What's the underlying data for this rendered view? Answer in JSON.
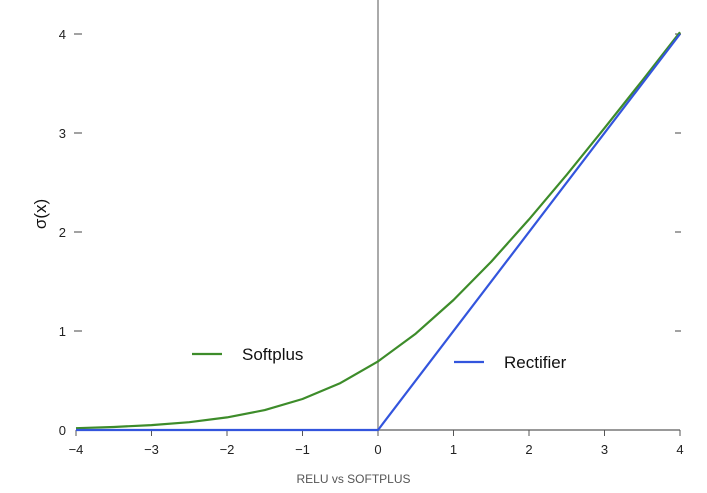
{
  "chart_data": {
    "type": "line",
    "title": "",
    "xlabel": "",
    "ylabel": "σ(x)",
    "xlim": [
      -4,
      4
    ],
    "ylim": [
      0,
      4
    ],
    "x_ticks": [
      -4,
      -3,
      -2,
      -1,
      0,
      1,
      2,
      3,
      4
    ],
    "x_tick_labels": [
      "−4",
      "−3",
      "−2",
      "−1",
      "0",
      "1",
      "2",
      "3",
      "4"
    ],
    "y_ticks": [
      0,
      1,
      2,
      3,
      4
    ],
    "y_tick_labels": [
      "0",
      "1",
      "2",
      "3",
      "4"
    ],
    "grid": false,
    "series": [
      {
        "name": "Softplus",
        "color": "#3d8c2a",
        "x": [
          -4,
          -3.5,
          -3,
          -2.5,
          -2,
          -1.5,
          -1,
          -0.5,
          0,
          0.5,
          1,
          1.5,
          2,
          2.5,
          3,
          3.5,
          4
        ],
        "y": [
          0.018,
          0.03,
          0.049,
          0.079,
          0.127,
          0.201,
          0.313,
          0.474,
          0.693,
          0.974,
          1.313,
          1.701,
          2.127,
          2.579,
          3.049,
          3.53,
          4.018
        ]
      },
      {
        "name": "Rectifier",
        "color": "#3355dd",
        "x": [
          -4,
          0,
          4
        ],
        "y": [
          0,
          0,
          4
        ]
      }
    ],
    "zero_line_color": "#aaaaaa"
  },
  "caption": "RELU vs SOFTPLUS"
}
